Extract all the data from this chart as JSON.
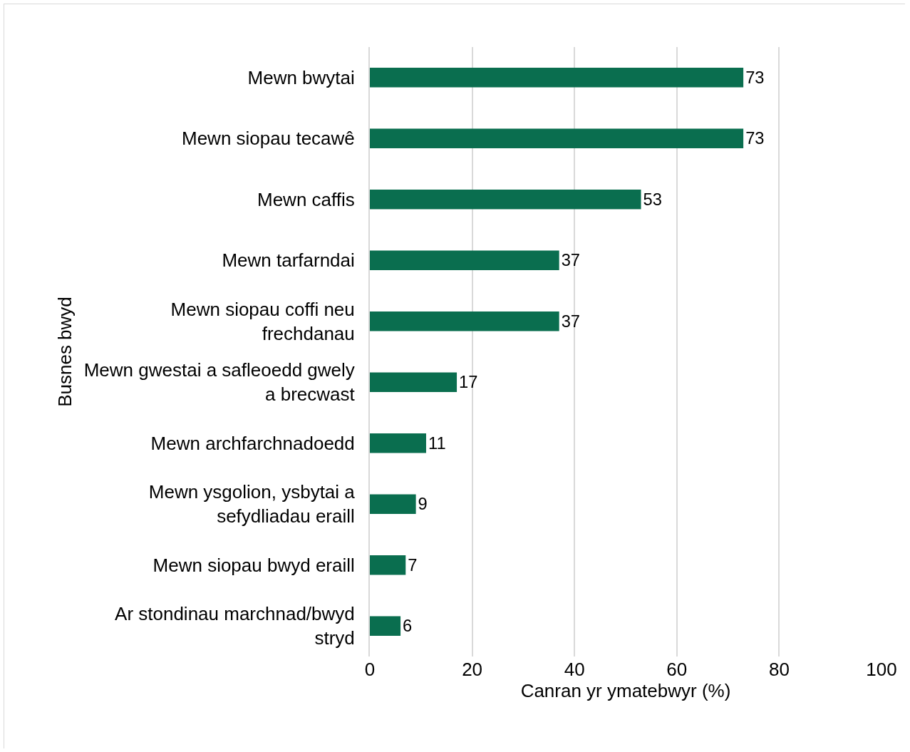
{
  "chart_data": {
    "type": "bar",
    "orientation": "horizontal",
    "ylabel": "Busnes bwyd",
    "xlabel": "Canran yr ymatebwyr (%)",
    "categories": [
      "Mewn bwytai",
      "Mewn siopau tecawê",
      "Mewn caffis",
      "Mewn tarfarndai",
      "Mewn siopau coffi neu frechdanau",
      "Mewn gwestai a safleoedd gwely a brecwast",
      "Mewn archfarchnadoedd",
      "Mewn ysgolion, ysbytai a sefydliadau eraill",
      "Mewn siopau bwyd eraill",
      "Ar stondinau marchnad/bwyd stryd"
    ],
    "values": [
      73,
      73,
      53,
      37,
      37,
      17,
      11,
      9,
      7,
      6
    ],
    "color": "#0a6e4f",
    "xlim": [
      0,
      100
    ],
    "xticks": [
      0,
      20,
      40,
      60,
      80,
      100
    ],
    "grid": "x",
    "data_labels": true
  }
}
